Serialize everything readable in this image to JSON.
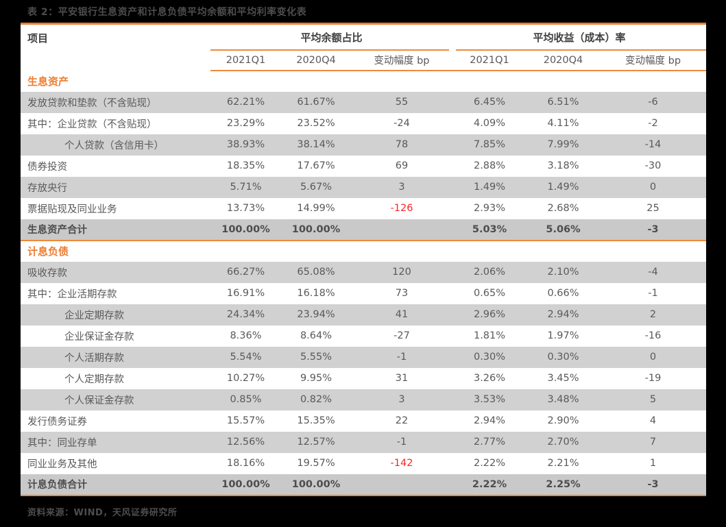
{
  "page": {
    "title": "表 2：平安银行生息资产和计息负债平均余额和平均利率变化表",
    "source": "资料来源：WIND，天风证券研究所"
  },
  "colors": {
    "accent_orange": "#ED7D31",
    "rule_orange": "#ED8A3C",
    "negative_red": "#FF2222",
    "stripe_gray": "#D1D1D1",
    "total_row_gray": "#C9C9C9",
    "body_text_gray": "#595959",
    "page_background": "#000000"
  },
  "table": {
    "item_header": "项目",
    "groups": [
      {
        "label": "平均余额占比"
      },
      {
        "label": "平均收益（成本）率"
      }
    ],
    "sub_headers": [
      "2021Q1",
      "2020Q4",
      "变动幅度 bp",
      "2021Q1",
      "2020Q4",
      "变动幅度 bp"
    ],
    "rows": [
      {
        "type": "section",
        "label": "生息资产"
      },
      {
        "type": "data",
        "label": "发放贷款和垫款（不含贴现）",
        "indent": 0,
        "cells": [
          "62.21%",
          "61.67%",
          "55",
          "6.45%",
          "6.51%",
          "-6"
        ]
      },
      {
        "type": "data",
        "label": "其中：企业贷款（不含贴现）",
        "indent": 0,
        "cells": [
          "23.29%",
          "23.52%",
          "-24",
          "4.09%",
          "4.11%",
          "-2"
        ]
      },
      {
        "type": "data",
        "label": "个人贷款（含信用卡）",
        "indent": 1,
        "cells": [
          "38.93%",
          "38.14%",
          "78",
          "7.85%",
          "7.99%",
          "-14"
        ]
      },
      {
        "type": "data",
        "label": "债券投资",
        "indent": 0,
        "cells": [
          "18.35%",
          "17.67%",
          "69",
          "2.88%",
          "3.18%",
          "-30"
        ]
      },
      {
        "type": "data",
        "label": "存放央行",
        "indent": 0,
        "cells": [
          "5.71%",
          "5.67%",
          "3",
          "1.49%",
          "1.49%",
          "0"
        ]
      },
      {
        "type": "data",
        "label": "票据贴现及同业业务",
        "indent": 0,
        "cells": [
          "13.73%",
          "14.99%",
          "-126",
          "2.93%",
          "2.68%",
          "25"
        ],
        "red_cells": [
          2
        ]
      },
      {
        "type": "total",
        "label": "生息资产合计",
        "cells": [
          "100.00%",
          "100.00%",
          "",
          "5.03%",
          "5.06%",
          "-3"
        ]
      },
      {
        "type": "section",
        "label": "计息负债"
      },
      {
        "type": "data",
        "label": "吸收存款",
        "indent": 0,
        "cells": [
          "66.27%",
          "65.08%",
          "120",
          "2.06%",
          "2.10%",
          "-4"
        ]
      },
      {
        "type": "data",
        "label": "其中：企业活期存款",
        "indent": 0,
        "cells": [
          "16.91%",
          "16.18%",
          "73",
          "0.65%",
          "0.66%",
          "-1"
        ]
      },
      {
        "type": "data",
        "label": "企业定期存款",
        "indent": 1,
        "cells": [
          "24.34%",
          "23.94%",
          "41",
          "2.96%",
          "2.94%",
          "2"
        ]
      },
      {
        "type": "data",
        "label": "企业保证金存款",
        "indent": 1,
        "cells": [
          "8.36%",
          "8.64%",
          "-27",
          "1.81%",
          "1.97%",
          "-16"
        ]
      },
      {
        "type": "data",
        "label": "个人活期存款",
        "indent": 1,
        "cells": [
          "5.54%",
          "5.55%",
          "-1",
          "0.30%",
          "0.30%",
          "0"
        ]
      },
      {
        "type": "data",
        "label": "个人定期存款",
        "indent": 1,
        "cells": [
          "10.27%",
          "9.95%",
          "31",
          "3.26%",
          "3.45%",
          "-19"
        ]
      },
      {
        "type": "data",
        "label": "个人保证金存款",
        "indent": 1,
        "cells": [
          "0.85%",
          "0.82%",
          "3",
          "3.53%",
          "3.48%",
          "5"
        ]
      },
      {
        "type": "data",
        "label": "发行债务证券",
        "indent": 0,
        "cells": [
          "15.57%",
          "15.35%",
          "22",
          "2.94%",
          "2.90%",
          "4"
        ]
      },
      {
        "type": "data",
        "label": "其中：同业存单",
        "indent": 0,
        "cells": [
          "12.56%",
          "12.57%",
          "-1",
          "2.77%",
          "2.70%",
          "7"
        ]
      },
      {
        "type": "data",
        "label": "同业业务及其他",
        "indent": 0,
        "cells": [
          "18.16%",
          "19.57%",
          "-142",
          "2.22%",
          "2.21%",
          "1"
        ],
        "red_cells": [
          2
        ]
      },
      {
        "type": "total",
        "label": "计息负债合计",
        "cells": [
          "100.00%",
          "100.00%",
          "",
          "2.22%",
          "2.25%",
          "-3"
        ]
      }
    ]
  }
}
